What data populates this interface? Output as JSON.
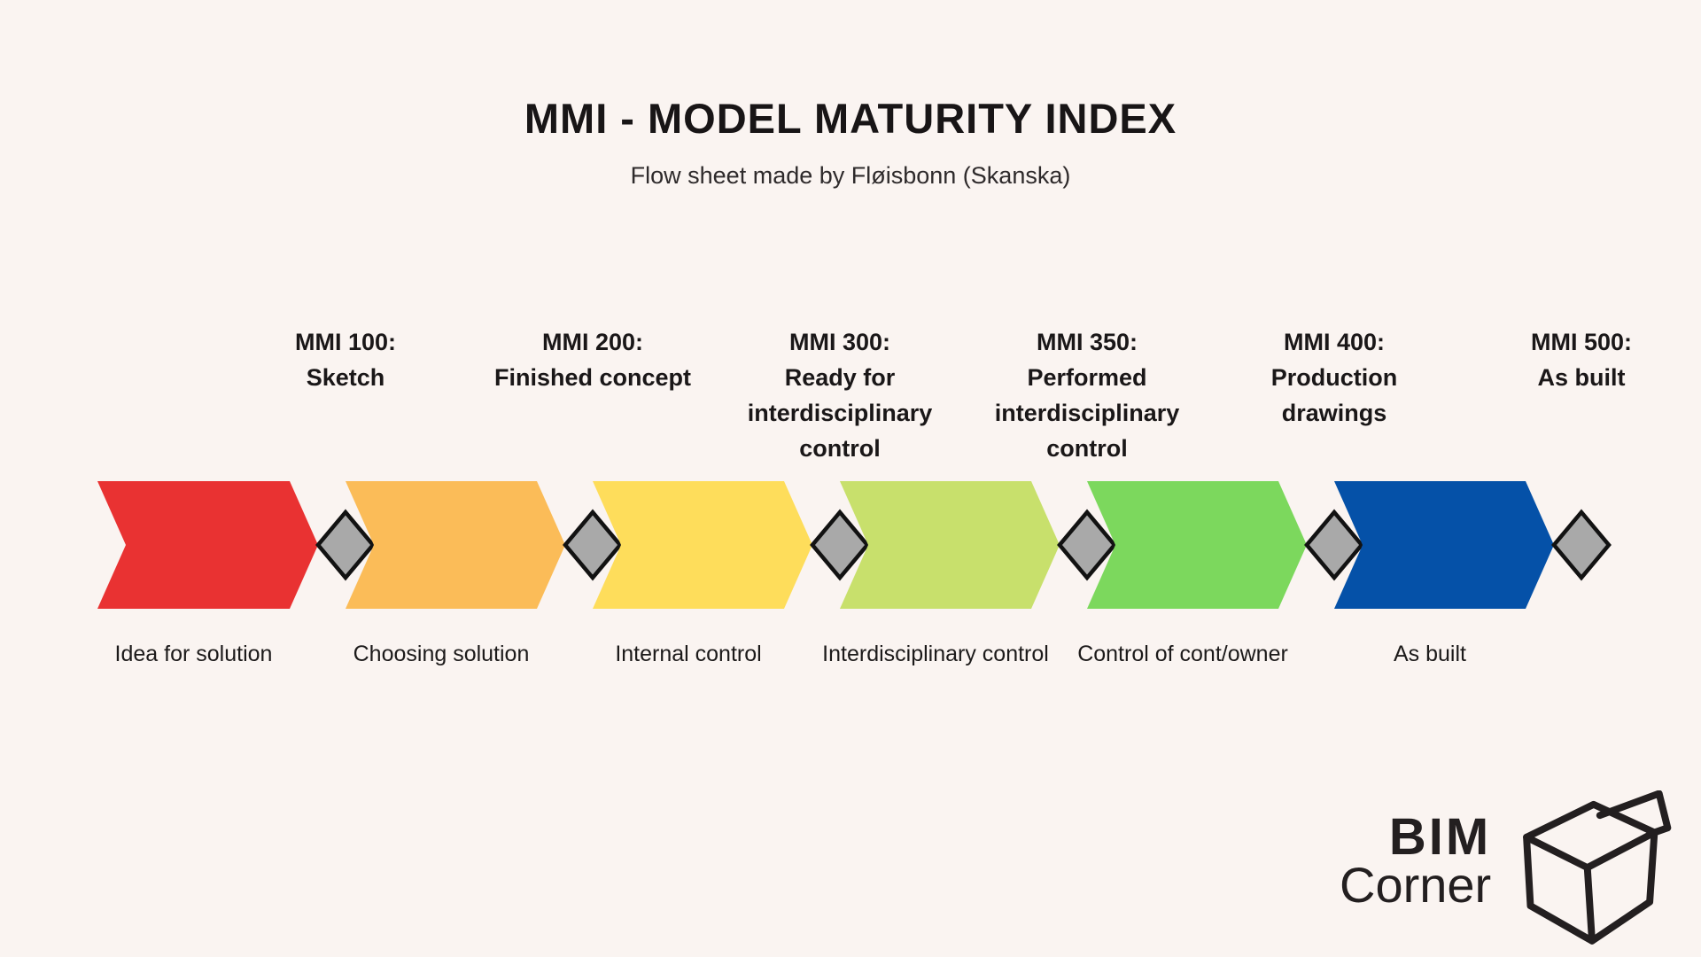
{
  "header": {
    "title": "MMI - MODEL MATURITY INDEX",
    "subtitle": "Flow sheet made by Fløisbonn (Skanska)"
  },
  "colors": {
    "background": "#FAF4F1",
    "text": "#1a1718",
    "diamond_fill": "#A9A9A9",
    "diamond_stroke": "#121212",
    "logo_ink": "#231f20"
  },
  "stages": [
    {
      "mmi": "MMI 100:",
      "milestone": "Sketch",
      "phase": "Idea for solution",
      "color": "#E93232"
    },
    {
      "mmi": "MMI 200:",
      "milestone": "Finished concept",
      "phase": "Choosing solution",
      "color": "#FBBC58"
    },
    {
      "mmi": "MMI 300:",
      "milestone": "Ready for interdisciplinary control",
      "phase": "Internal control",
      "color": "#FEDD5B"
    },
    {
      "mmi": "MMI 350:",
      "milestone": "Performed interdisciplinary control",
      "phase": "Interdisciplinary control",
      "color": "#C8E06C"
    },
    {
      "mmi": "MMI 400:",
      "milestone": "Production drawings",
      "phase": "Control of cont/owner",
      "color": "#7CD85D"
    },
    {
      "mmi": "MMI 500:",
      "milestone": "As built",
      "phase": "As built",
      "color": "#0551A8"
    }
  ],
  "logo": {
    "line1": "BIM",
    "line2": "Corner"
  }
}
